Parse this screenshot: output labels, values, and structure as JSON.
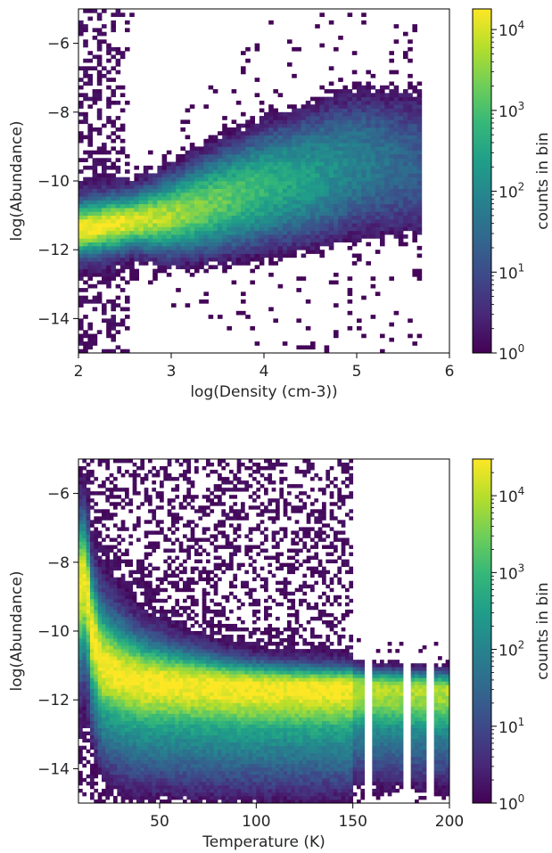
{
  "chart_data": [
    {
      "type": "heatmap",
      "title": "",
      "xlabel": "log(Density (cm-3))",
      "ylabel": "log(Abundance)",
      "xlim": [
        2,
        6
      ],
      "ylim": [
        -15,
        -5
      ],
      "xticks": [
        2,
        3,
        4,
        5,
        6
      ],
      "xtick_labels": [
        "2",
        "3",
        "4",
        "5",
        "6"
      ],
      "yticks": [
        -6,
        -8,
        -10,
        -12,
        -14
      ],
      "ytick_labels": [
        "−6",
        "−8",
        "−10",
        "−12",
        "−14"
      ],
      "colorbar": {
        "label": "counts in bin",
        "scale": "log",
        "range": [
          1,
          18000
        ],
        "ticks": [
          1,
          10,
          100,
          1000,
          10000
        ],
        "tick_bases": [
          "10",
          "10",
          "10",
          "10",
          "10"
        ],
        "tick_exponents": [
          "0",
          "1",
          "2",
          "3",
          "4"
        ],
        "colormap": "viridis"
      },
      "distribution": {
        "ridge_y_at_x": [
          [
            2.0,
            -11.4
          ],
          [
            2.5,
            -11.2
          ],
          [
            3.0,
            -11.0
          ],
          [
            3.5,
            -10.6
          ],
          [
            4.0,
            -10.2
          ],
          [
            4.5,
            -9.9
          ],
          [
            5.0,
            -9.5
          ]
        ],
        "x_extent": [
          2.0,
          5.7
        ],
        "peak_log_count": 4.2
      },
      "grid": false
    },
    {
      "type": "heatmap",
      "title": "",
      "xlabel": "Temperature (K)",
      "ylabel": "log(Abundance)",
      "xlim": [
        8,
        200
      ],
      "ylim": [
        -15,
        -5
      ],
      "xticks": [
        50,
        100,
        150,
        200
      ],
      "xtick_labels": [
        "50",
        "100",
        "150",
        "200"
      ],
      "yticks": [
        -6,
        -8,
        -10,
        -12,
        -14
      ],
      "ytick_labels": [
        "−6",
        "−8",
        "−10",
        "−12",
        "−14"
      ],
      "colorbar": {
        "label": "counts in bin",
        "scale": "log",
        "range": [
          1,
          30000
        ],
        "ticks": [
          1,
          10,
          100,
          1000,
          10000
        ],
        "tick_bases": [
          "10",
          "10",
          "10",
          "10",
          "10"
        ],
        "tick_exponents": [
          "0",
          "1",
          "2",
          "3",
          "4"
        ],
        "colormap": "viridis"
      },
      "distribution": {
        "ridge_y_at_x": [
          [
            12,
            -8.5
          ],
          [
            15,
            -10.0
          ],
          [
            20,
            -11.0
          ],
          [
            30,
            -11.3
          ],
          [
            40,
            -11.45
          ],
          [
            60,
            -11.5
          ],
          [
            100,
            -11.6
          ],
          [
            150,
            -11.6
          ],
          [
            200,
            -11.7
          ]
        ],
        "empty_temperature_gaps": [
          158,
          178,
          190
        ],
        "peak_log_count": 4.3
      },
      "grid": false
    }
  ],
  "colors": {
    "viridis": [
      "#440154",
      "#482878",
      "#3e4989",
      "#31688e",
      "#26828e",
      "#1f9e89",
      "#35b779",
      "#6ece58",
      "#b5de2b",
      "#fde725"
    ],
    "text": "#262626",
    "axis": "#000000"
  }
}
